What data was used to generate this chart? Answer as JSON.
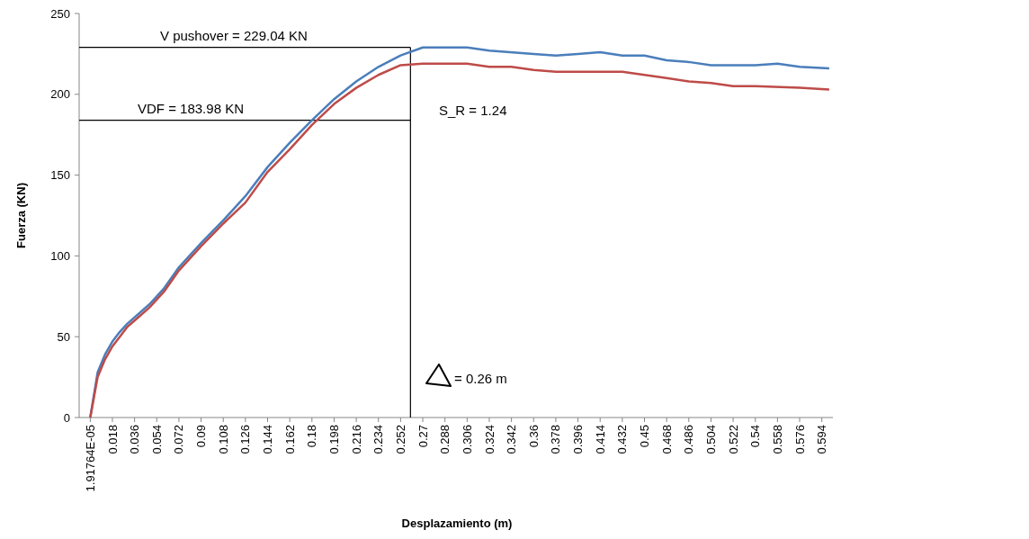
{
  "chart_data": {
    "type": "line",
    "xlabel": "Desplazamiento (m)",
    "ylabel": "Fuerza (KN)",
    "xlim": [
      -0.009,
      0.603
    ],
    "ylim": [
      0,
      250
    ],
    "xticks": [
      {
        "value": 1.91764e-05,
        "label": "1.91764E-05"
      },
      0.018,
      0.036,
      0.054,
      0.072,
      0.09,
      0.108,
      0.126,
      0.144,
      0.162,
      0.18,
      0.198,
      0.216,
      0.234,
      0.252,
      0.27,
      0.288,
      0.306,
      0.324,
      0.342,
      0.36,
      0.378,
      0.396,
      0.414,
      0.432,
      0.45,
      0.468,
      0.486,
      0.504,
      0.522,
      0.54,
      0.558,
      0.576,
      0.594
    ],
    "yticks": [
      0,
      50,
      100,
      150,
      200,
      250
    ],
    "grid": false,
    "marker": "none",
    "line_style": "solid",
    "series": [
      {
        "color": "#4a7ebb",
        "x": [
          1.91764e-05,
          0.006,
          0.012,
          0.018,
          0.024,
          0.03,
          0.036,
          0.048,
          0.054,
          0.06,
          0.072,
          0.084,
          0.09,
          0.108,
          0.126,
          0.144,
          0.162,
          0.18,
          0.198,
          0.216,
          0.234,
          0.252,
          0.27,
          0.306,
          0.324,
          0.36,
          0.378,
          0.396,
          0.414,
          0.432,
          0.45,
          0.468,
          0.486,
          0.504,
          0.522,
          0.54,
          0.558,
          0.576,
          0.6
        ],
        "values": [
          0,
          28,
          39,
          47,
          53,
          58,
          62,
          70,
          75,
          80,
          93,
          103,
          108,
          122,
          137,
          155,
          170,
          184,
          197,
          208,
          217,
          224,
          229,
          229,
          227,
          225,
          224,
          225,
          226,
          224,
          224,
          221,
          220,
          218,
          218,
          218,
          219,
          217,
          216
        ]
      },
      {
        "color": "#be4b48",
        "x": [
          1.91764e-05,
          0.006,
          0.012,
          0.018,
          0.024,
          0.03,
          0.036,
          0.048,
          0.054,
          0.06,
          0.072,
          0.084,
          0.09,
          0.108,
          0.126,
          0.144,
          0.162,
          0.18,
          0.198,
          0.216,
          0.234,
          0.252,
          0.27,
          0.306,
          0.324,
          0.342,
          0.36,
          0.378,
          0.432,
          0.45,
          0.468,
          0.486,
          0.504,
          0.522,
          0.54,
          0.576,
          0.6
        ],
        "values": [
          0,
          25,
          36,
          44,
          50,
          56,
          60,
          68,
          73,
          78,
          91,
          101,
          106,
          120,
          133,
          152,
          166,
          181,
          194,
          204,
          212,
          218,
          219,
          219,
          217,
          217,
          215,
          214,
          214,
          212,
          210,
          208,
          207,
          205,
          205,
          204,
          203
        ]
      }
    ],
    "ref_lines": [
      {
        "axis": "y",
        "value": 229.04,
        "label": "V pushover = 229.04 KN",
        "color": "#000000"
      },
      {
        "axis": "y",
        "value": 183.98,
        "label": "VDF = 183.98 KN",
        "color": "#000000"
      },
      {
        "axis": "x",
        "value": 0.26,
        "color": "#000000"
      }
    ],
    "annotations": [
      "S_R = 1.24",
      "= 0.26 m"
    ]
  }
}
